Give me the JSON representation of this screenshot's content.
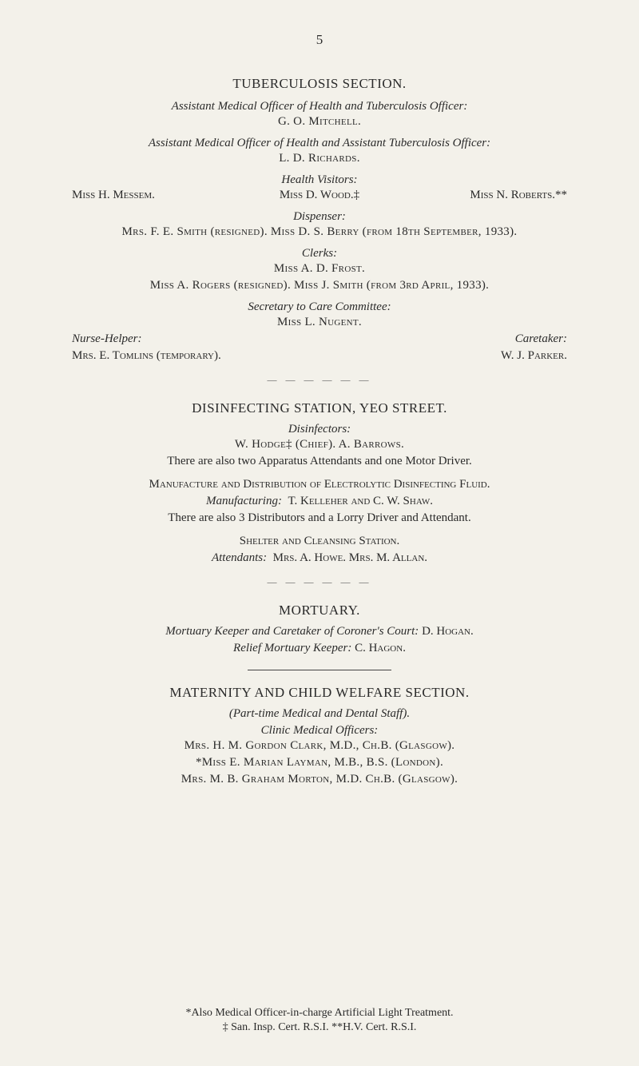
{
  "page_number": "5",
  "tb": {
    "title": "TUBERCULOSIS SECTION.",
    "amo_role": "Assistant Medical Officer of Health and Tuberculosis Officer:",
    "amo_name": "G. O. Mitchell.",
    "assist_amo_role": "Assistant Medical Officer of Health and Assistant Tuberculosis Officer:",
    "assist_amo_name": "L. D. Richards.",
    "hv_role": "Health Visitors:",
    "hv_left": "Miss H. Messem.",
    "hv_center": "Miss D. Wood.‡",
    "hv_right": "Miss N. Roberts.**",
    "disp_role": "Dispenser:",
    "disp_line": "Mrs. F. E. Smith (resigned).    Miss D. S. Berry (from 18th September, 1933).",
    "clerks_role": "Clerks:",
    "clerks_line1": "Miss A. D. Frost.",
    "clerks_line2": "Miss A. Rogers (resigned).    Miss J. Smith (from 3rd April, 1933).",
    "sec_role": "Secretary to Care Committee:",
    "sec_name": "Miss L. Nugent.",
    "nurse_role": "Nurse-Helper:",
    "nurse_name": "Mrs. E. Tomlins (temporary).",
    "caretaker_role": "Caretaker:",
    "caretaker_name": "W. J. Parker."
  },
  "divider_dashes": "— — — — — —",
  "disinfect": {
    "title": "DISINFECTING STATION, YEO STREET.",
    "disinf_role": "Disinfectors:",
    "disinf_line": "W. Hodge‡ (Chief).    A. Barrows.",
    "app_line": "There are also two Apparatus Attendants and one Motor Driver.",
    "manu_title": "Manufacture and Distribution of Electrolytic Disinfecting Fluid.",
    "manu_role": "Manufacturing:",
    "manu_names": "T. Kelleher and C. W. Shaw.",
    "dist_line": "There are also 3 Distributors and a Lorry Driver and Attendant.",
    "shelter_title": "Shelter and Cleansing Station.",
    "shelter_role": "Attendants:",
    "shelter_names": "Mrs. A. Howe.   Mrs. M. Allan."
  },
  "mortuary": {
    "title": "MORTUARY.",
    "line1_role": "Mortuary Keeper and Caretaker of Coroner's Court:",
    "line1_name": "D. Hogan.",
    "line2_role": "Relief Mortuary Keeper:",
    "line2_name": "C. Hagon."
  },
  "maternity": {
    "title": "MATERNITY AND CHILD WELFARE SECTION.",
    "subtitle": "(Part-time Medical and Dental Staff).",
    "cmo_role": "Clinic Medical Officers:",
    "cmo1": "Mrs. H. M. Gordon Clark, M.D., Ch.B. (Glasgow).",
    "cmo2": "*Miss E. Marian Layman, M.B., B.S. (London).",
    "cmo3": "Mrs. M. B. Graham Morton, M.D. Ch.B. (Glasgow)."
  },
  "footnotes": {
    "line1": "*Also Medical Officer-in-charge Artificial Light Treatment.",
    "line2": "‡ San. Insp. Cert. R.S.I.       **H.V. Cert. R.S.I."
  }
}
